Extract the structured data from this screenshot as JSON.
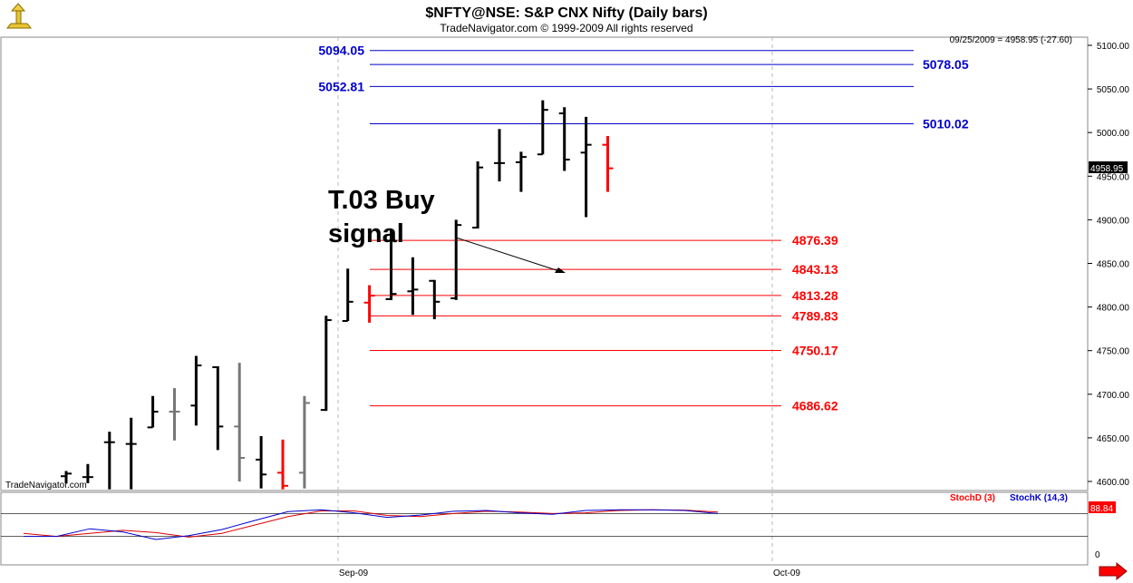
{
  "title": "$NFTY@NSE:  S&P CNX Nifty  (Daily bars)",
  "subtitle": "TradeNavigator.com © 1999-2009 All rights reserved",
  "watermark": "TradeNavigator.com",
  "readout": "09/25/2009 = 4958.95 (-27.60)",
  "last_price_label": "4958.95",
  "annotation": {
    "line1": "T.03 Buy",
    "line2": "signal"
  },
  "indicator": {
    "d_label": "StochD (3)",
    "k_label": "StochK (14,3)",
    "value_label": "88.84",
    "zero_label": "0"
  },
  "colors": {
    "up": "#000000",
    "down": "#777777",
    "red_bar": "#ff0000",
    "blue": "#0000cc",
    "red": "#ff0000"
  },
  "chart_data": {
    "type": "ohlc",
    "yticks": [
      "5100.00",
      "5050.00",
      "5000.00",
      "4950.00",
      "4900.00",
      "4850.00",
      "4800.00",
      "4750.00",
      "4700.00",
      "4650.00",
      "4600.00"
    ],
    "ylim": [
      4591,
      5107
    ],
    "xticks": [
      "Sep-09",
      "Oct-09"
    ],
    "levels_blue": [
      {
        "value": 5094.05,
        "label": "5094.05",
        "side": "left"
      },
      {
        "value": 5078.05,
        "label": "5078.05",
        "side": "right"
      },
      {
        "value": 5052.81,
        "label": "5052.81",
        "side": "left"
      },
      {
        "value": 5010.02,
        "label": "5010.02",
        "side": "right"
      }
    ],
    "levels_red": [
      {
        "value": 4876.39,
        "label": "4876.39"
      },
      {
        "value": 4843.13,
        "label": "4843.13"
      },
      {
        "value": 4813.28,
        "label": "4813.28"
      },
      {
        "value": 4789.83,
        "label": "4789.83"
      },
      {
        "value": 4750.17,
        "label": "4750.17"
      },
      {
        "value": 4686.62,
        "label": "4686.62"
      }
    ],
    "bars": [
      {
        "h": 4612,
        "l": 4598,
        "o": 4606,
        "c": 4609,
        "color": "up"
      },
      {
        "h": 4620,
        "l": 4598,
        "o": 4605,
        "c": 4605,
        "color": "up"
      },
      {
        "h": 4657,
        "l": 4591,
        "o": 4645,
        "c": 4645,
        "color": "up"
      },
      {
        "h": 4673,
        "l": 4591,
        "o": 4643,
        "c": 4643,
        "color": "up"
      },
      {
        "h": 4698,
        "l": 4662,
        "o": 4662,
        "c": 4680,
        "color": "up"
      },
      {
        "h": 4707,
        "l": 4647,
        "o": 4680,
        "c": 4680,
        "color": "down"
      },
      {
        "h": 4744,
        "l": 4664,
        "o": 4687,
        "c": 4733,
        "color": "up"
      },
      {
        "h": 4732,
        "l": 4636,
        "o": 4731,
        "c": 4663,
        "color": "up"
      },
      {
        "h": 4736,
        "l": 4600,
        "o": 4663,
        "c": 4627,
        "color": "down"
      },
      {
        "h": 4652,
        "l": 4592,
        "o": 4625,
        "c": 4608,
        "color": "up"
      },
      {
        "h": 4648,
        "l": 4591,
        "o": 4610,
        "c": 4595,
        "color": "red_bar"
      },
      {
        "h": 4698,
        "l": 4592,
        "o": 4610,
        "c": 4690,
        "color": "down"
      },
      {
        "h": 4790,
        "l": 4681,
        "o": 4682,
        "c": 4785,
        "color": "up"
      },
      {
        "h": 4844,
        "l": 4784,
        "o": 4784,
        "c": 4806,
        "color": "up"
      },
      {
        "h": 4825,
        "l": 4782,
        "o": 4805,
        "c": 4813,
        "color": "red_bar"
      },
      {
        "h": 4889,
        "l": 4808,
        "o": 4809,
        "c": 4815,
        "color": "up"
      },
      {
        "h": 4857,
        "l": 4791,
        "o": 4818,
        "c": 4820,
        "color": "up"
      },
      {
        "h": 4831,
        "l": 4786,
        "o": 4830,
        "c": 4806,
        "color": "up"
      },
      {
        "h": 4900,
        "l": 4808,
        "o": 4810,
        "c": 4894,
        "color": "up"
      },
      {
        "h": 4967,
        "l": 4890,
        "o": 4891,
        "c": 4960,
        "color": "up"
      },
      {
        "h": 5004,
        "l": 4944,
        "o": 4965,
        "c": 4965,
        "color": "up"
      },
      {
        "h": 4978,
        "l": 4932,
        "o": 4966,
        "c": 4972,
        "color": "up"
      },
      {
        "h": 5037,
        "l": 4975,
        "o": 4975,
        "c": 5026,
        "color": "up"
      },
      {
        "h": 5029,
        "l": 4956,
        "o": 5022,
        "c": 4969,
        "color": "up"
      },
      {
        "h": 5018,
        "l": 4903,
        "o": 4977,
        "c": 4986,
        "color": "up"
      },
      {
        "h": 4996,
        "l": 4932,
        "o": 4986,
        "c": 4959,
        "color": "red_bar"
      }
    ],
    "stoch_k": [
      20,
      20,
      40,
      32,
      12,
      22,
      38,
      62,
      85,
      90,
      82,
      70,
      76,
      86,
      88,
      82,
      78,
      88,
      90,
      90,
      88,
      80
    ],
    "stoch_d": [
      28,
      20,
      28,
      36,
      30,
      18,
      28,
      50,
      72,
      87,
      87,
      75,
      72,
      80,
      86,
      84,
      80,
      82,
      88,
      90,
      89,
      84
    ]
  }
}
